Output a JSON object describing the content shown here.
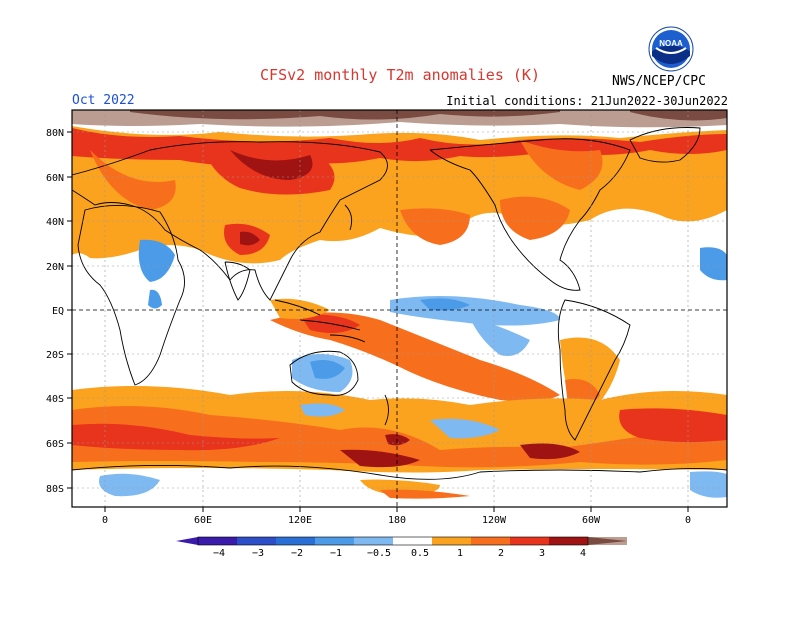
{
  "header": {
    "title": "CFSv2 monthly T2m anomalies (K)",
    "org": "NWS/NCEP/CPC",
    "month": "Oct 2022",
    "initial_conditions": "Initial conditions: 21Jun2022-30Jun2022",
    "logo_text": "NOAA"
  },
  "map": {
    "lat_labels": [
      "80N",
      "60N",
      "40N",
      "20N",
      "EQ",
      "20S",
      "40S",
      "60S",
      "80S"
    ],
    "lon_labels": [
      "0",
      "60E",
      "120E",
      "180",
      "120W",
      "60W",
      "0"
    ]
  },
  "colorbar": {
    "labels": [
      "−4",
      "−3",
      "−2",
      "−1",
      "−0.5",
      "0.5",
      "1",
      "2",
      "3",
      "4"
    ],
    "colors": {
      "below_-4": "#3a1bab",
      "-4_-3": "#2d4ec9",
      "-3_-2": "#2a6fd6",
      "-2_-1": "#4b9be8",
      "-1_-0.5": "#7fb9f2",
      "-0.5_0.5": "#ffffff",
      "0.5_1": "#fba21f",
      "1_2": "#f76f1c",
      "2_3": "#e8341c",
      "3_4": "#a01313",
      "4_plus": "#bb9d92",
      "above": "#7a4b40"
    }
  },
  "colors": {
    "title": "#d8362f",
    "month": "#1c4fd6"
  }
}
